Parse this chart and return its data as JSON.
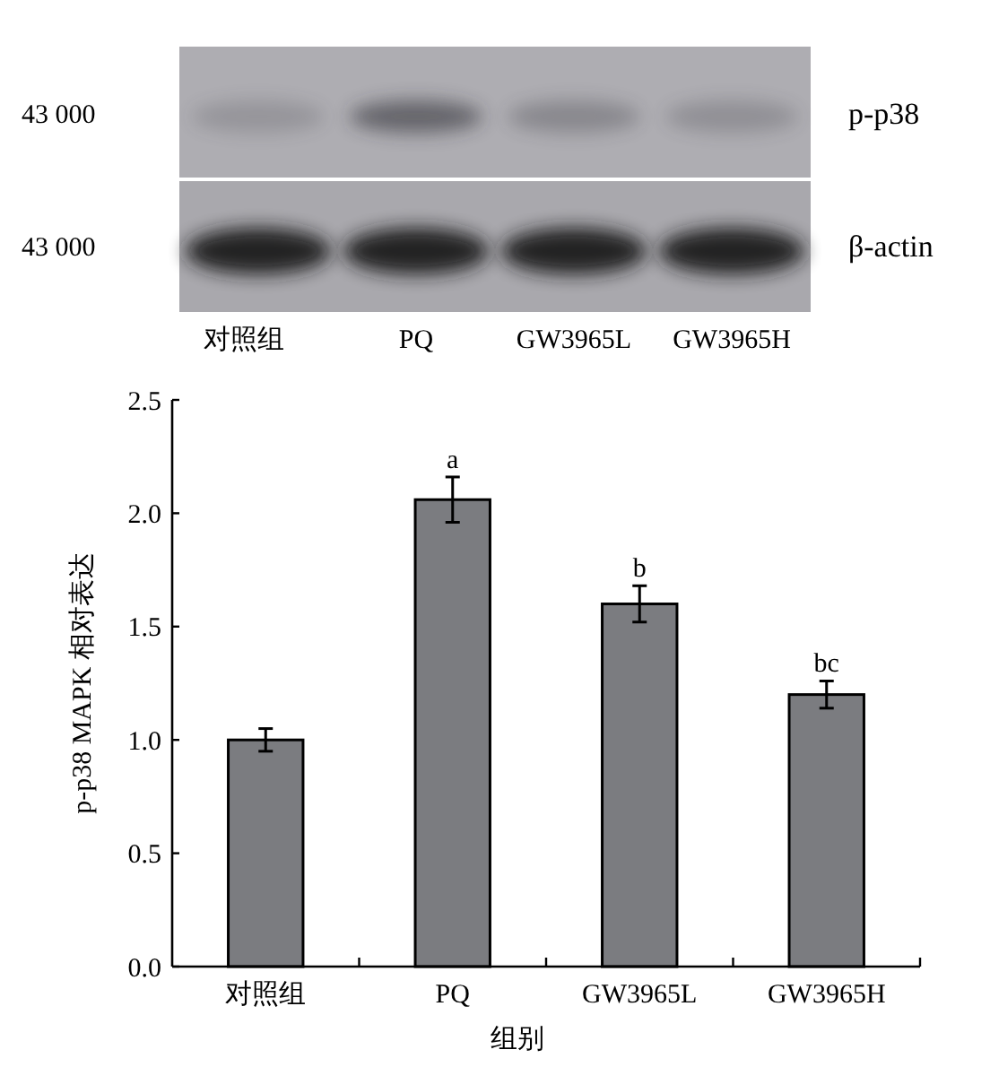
{
  "chart_data": {
    "type": "bar",
    "xlabel": "组别",
    "ylabel": "p-p38 MAPK 相对表达",
    "categories": [
      "对照组",
      "PQ",
      "GW3965L",
      "GW3965H"
    ],
    "values": [
      1.0,
      2.06,
      1.6,
      1.2
    ],
    "errors": [
      0.05,
      0.1,
      0.08,
      0.06
    ],
    "color": "#7b7c80",
    "ylim": [
      0,
      2.5
    ],
    "yticks": [
      {
        "value": 0,
        "label": "0.0"
      },
      0.5,
      {
        "value": 1,
        "label": "1.0"
      },
      1.5,
      {
        "value": 2,
        "label": "2.0"
      },
      2.5
    ],
    "annotations": [
      "43 000",
      "p-p38",
      "43 000",
      "β-actin",
      "对照组",
      "PQ",
      "GW3965L",
      "GW3965H",
      {
        "text": "a",
        "x": "PQ",
        "y": 2.16
      },
      {
        "text": "b",
        "x": "GW3965L",
        "y": 1.68
      },
      {
        "text": "bc",
        "x": "GW3965H",
        "y": 1.26
      }
    ]
  }
}
